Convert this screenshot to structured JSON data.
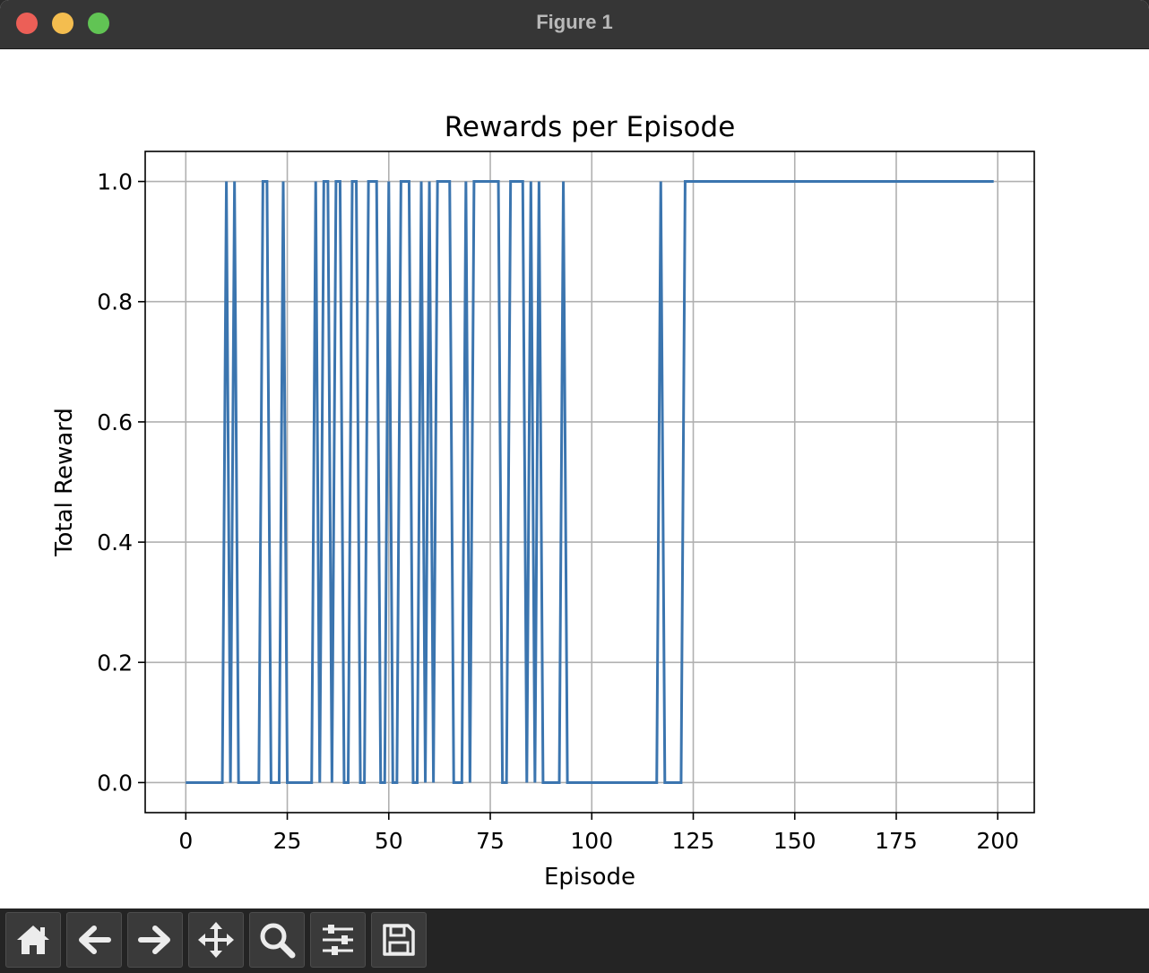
{
  "window": {
    "title": "Figure 1"
  },
  "toolbar": {
    "buttons": [
      {
        "name": "home-button",
        "icon": "home-icon"
      },
      {
        "name": "back-button",
        "icon": "arrow-left-icon"
      },
      {
        "name": "forward-button",
        "icon": "arrow-right-icon"
      },
      {
        "name": "pan-button",
        "icon": "move-icon"
      },
      {
        "name": "zoom-button",
        "icon": "magnifier-icon"
      },
      {
        "name": "configure-subplots-button",
        "icon": "sliders-icon"
      },
      {
        "name": "save-button",
        "icon": "floppy-disk-icon"
      }
    ]
  },
  "colors": {
    "line": "#3b75af",
    "grid": "#b0b0b0",
    "axes": "#000000"
  },
  "chart_data": {
    "type": "line",
    "title": "Rewards per Episode",
    "xlabel": "Episode",
    "ylabel": "Total Reward",
    "xlim": [
      -10,
      209
    ],
    "ylim": [
      -0.05,
      1.05
    ],
    "grid": true,
    "xticks": [
      0,
      25,
      50,
      75,
      100,
      125,
      150,
      175,
      200
    ],
    "xtick_labels": [
      "0",
      "25",
      "50",
      "75",
      "100",
      "125",
      "150",
      "175",
      "200"
    ],
    "yticks": [
      0.0,
      0.2,
      0.4,
      0.6,
      0.8,
      1.0
    ],
    "ytick_labels": [
      "0.0",
      "0.2",
      "0.4",
      "0.6",
      "0.8",
      "1.0"
    ],
    "series": [
      {
        "x": [
          0,
          1,
          2,
          3,
          4,
          5,
          6,
          7,
          8,
          9,
          10,
          11,
          12,
          13,
          14,
          15,
          16,
          17,
          18,
          19,
          20,
          21,
          22,
          23,
          24,
          25,
          26,
          27,
          28,
          29,
          30,
          31,
          32,
          33,
          34,
          35,
          36,
          37,
          38,
          39,
          40,
          41,
          42,
          43,
          44,
          45,
          46,
          47,
          48,
          49,
          50,
          51,
          52,
          53,
          54,
          55,
          56,
          57,
          58,
          59,
          60,
          61,
          62,
          63,
          64,
          65,
          66,
          67,
          68,
          69,
          70,
          71,
          72,
          73,
          74,
          75,
          76,
          77,
          78,
          79,
          80,
          81,
          82,
          83,
          84,
          85,
          86,
          87,
          88,
          89,
          90,
          91,
          92,
          93,
          94,
          95,
          96,
          97,
          98,
          99,
          100,
          101,
          102,
          103,
          104,
          105,
          106,
          107,
          108,
          109,
          110,
          111,
          112,
          113,
          114,
          115,
          116,
          117,
          118,
          119,
          120,
          121,
          122,
          123,
          124,
          125,
          126,
          127,
          128,
          129,
          130,
          131,
          132,
          133,
          134,
          135,
          136,
          137,
          138,
          139,
          140,
          141,
          142,
          143,
          144,
          145,
          146,
          147,
          148,
          149,
          150,
          151,
          152,
          153,
          154,
          155,
          156,
          157,
          158,
          159,
          160,
          161,
          162,
          163,
          164,
          165,
          166,
          167,
          168,
          169,
          170,
          171,
          172,
          173,
          174,
          175,
          176,
          177,
          178,
          179,
          180,
          181,
          182,
          183,
          184,
          185,
          186,
          187,
          188,
          189,
          190,
          191,
          192,
          193,
          194,
          195,
          196,
          197,
          198,
          199
        ],
        "y": [
          0,
          0,
          0,
          0,
          0,
          0,
          0,
          0,
          0,
          0,
          1,
          0,
          1,
          0,
          0,
          0,
          0,
          0,
          0,
          1,
          1,
          0,
          0,
          0,
          1,
          0,
          0,
          0,
          0,
          0,
          0,
          0,
          1,
          0,
          1,
          1,
          0,
          1,
          1,
          0,
          0,
          1,
          1,
          0,
          0,
          1,
          1,
          1,
          0,
          0,
          1,
          0,
          0,
          1,
          1,
          1,
          0,
          0,
          1,
          0,
          1,
          0,
          1,
          1,
          1,
          1,
          0,
          0,
          0,
          1,
          0,
          1,
          1,
          1,
          1,
          1,
          1,
          1,
          0,
          0,
          1,
          1,
          1,
          1,
          0,
          1,
          0,
          1,
          0,
          0,
          0,
          0,
          0,
          1,
          0,
          0,
          0,
          0,
          0,
          0,
          0,
          0,
          0,
          0,
          0,
          0,
          0,
          0,
          0,
          0,
          0,
          0,
          0,
          0,
          0,
          0,
          0,
          1,
          0,
          0,
          0,
          0,
          0,
          1,
          1,
          1,
          1,
          1,
          1,
          1,
          1,
          1,
          1,
          1,
          1,
          1,
          1,
          1,
          1,
          1,
          1,
          1,
          1,
          1,
          1,
          1,
          1,
          1,
          1,
          1,
          1,
          1,
          1,
          1,
          1,
          1,
          1,
          1,
          1,
          1,
          1,
          1,
          1,
          1,
          1,
          1,
          1,
          1,
          1,
          1,
          1,
          1,
          1,
          1,
          1,
          1,
          1,
          1,
          1,
          1,
          1,
          1,
          1,
          1,
          1,
          1,
          1,
          1,
          1,
          1,
          1,
          1,
          1,
          1,
          1,
          1,
          1,
          1,
          1,
          1
        ]
      }
    ]
  }
}
